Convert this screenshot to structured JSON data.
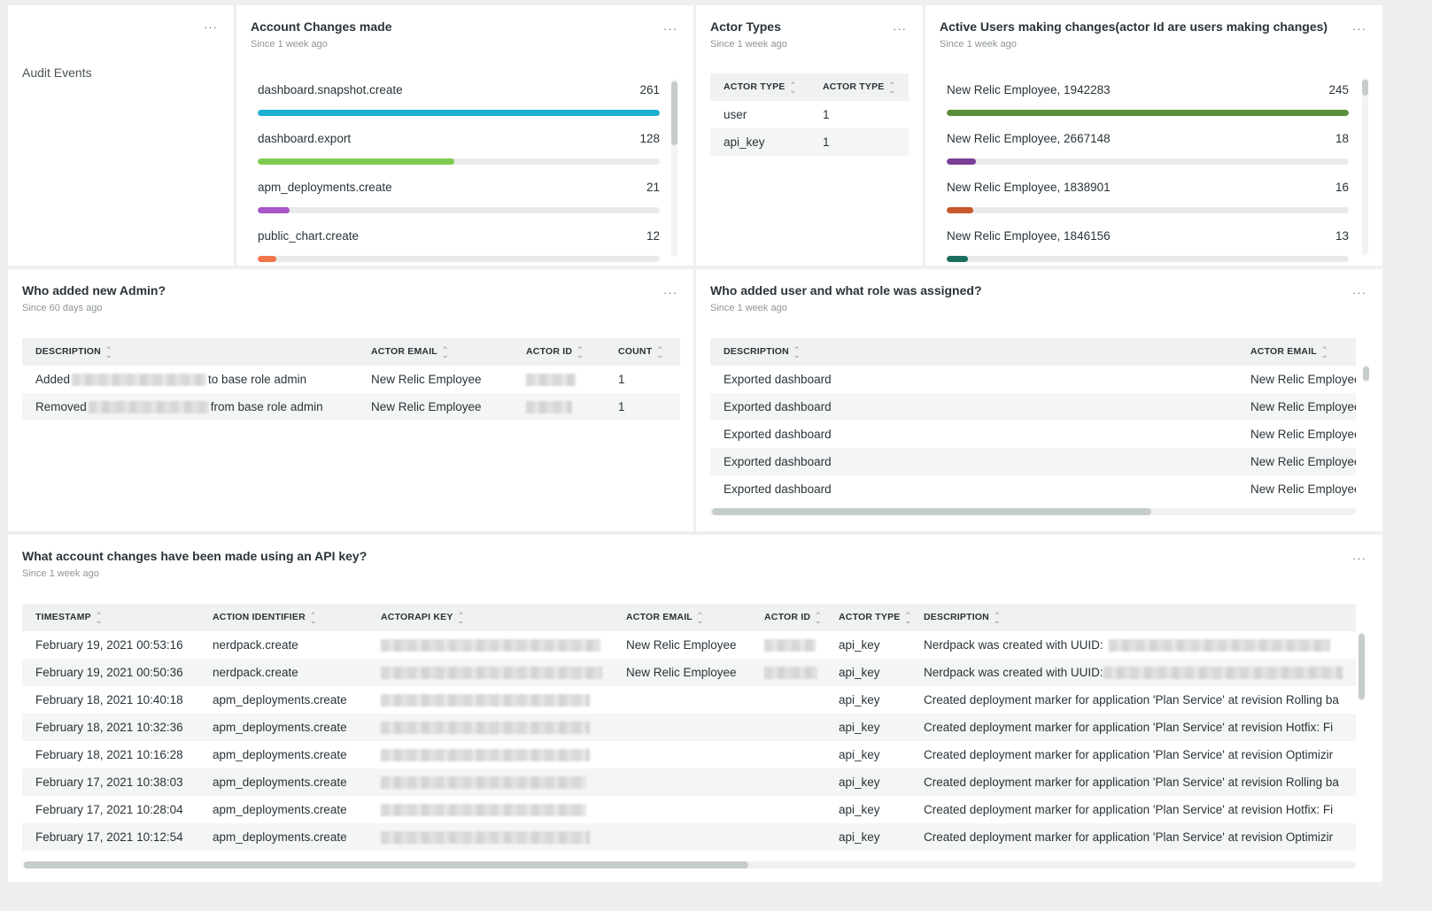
{
  "billboard": {
    "title": "Audit Events",
    "menu": "···"
  },
  "account_changes": {
    "title": "Account Changes made",
    "subtitle": "Since 1 week ago",
    "menu": "···",
    "items": [
      {
        "label": "dashboard.snapshot.create",
        "value": "261",
        "fraction": 1.0,
        "color": "#1aaecf"
      },
      {
        "label": "dashboard.export",
        "value": "128",
        "fraction": 0.49,
        "color": "#7fcb50"
      },
      {
        "label": "apm_deployments.create",
        "value": "21",
        "fraction": 0.08,
        "color": "#a855c7"
      },
      {
        "label": "public_chart.create",
        "value": "12",
        "fraction": 0.046,
        "color": "#f2744a"
      }
    ]
  },
  "actor_types": {
    "title": "Actor Types",
    "subtitle": "Since 1 week ago",
    "menu": "···",
    "headers": [
      "ACTOR TYPE",
      "ACTOR TYPE"
    ],
    "rows": [
      [
        "user",
        "1"
      ],
      [
        "api_key",
        "1"
      ]
    ]
  },
  "active_users": {
    "title": "Active Users making changes(actor Id are users making changes)",
    "subtitle": "Since 1 week ago",
    "menu": "···",
    "items": [
      {
        "label": "New Relic Employee, 1942283",
        "value": "245",
        "fraction": 1.0,
        "color": "#5a8f3a"
      },
      {
        "label": "New Relic Employee, 2667148",
        "value": "18",
        "fraction": 0.073,
        "color": "#7b3f96"
      },
      {
        "label": "New Relic Employee, 1838901",
        "value": "16",
        "fraction": 0.065,
        "color": "#c8572b"
      },
      {
        "label": "New Relic Employee, 1846156",
        "value": "13",
        "fraction": 0.053,
        "color": "#1b6e5e"
      }
    ]
  },
  "new_admin": {
    "title": "Who added new Admin?",
    "subtitle": "Since 60 days ago",
    "menu": "···",
    "headers": [
      "DESCRIPTION",
      "ACTOR EMAIL",
      "ACTOR ID",
      "COUNT"
    ],
    "rows": [
      {
        "pre": "Added",
        "post": "to base role admin",
        "email": "New Relic Employee",
        "count": "1"
      },
      {
        "pre": "Removed",
        "post": "from base role admin",
        "email": "New Relic Employee",
        "count": "1"
      }
    ]
  },
  "user_roles": {
    "title": "Who added user and what role was assigned?",
    "subtitle": "Since 1 week ago",
    "menu": "···",
    "headers": [
      "DESCRIPTION",
      "ACTOR EMAIL"
    ],
    "rows": [
      [
        "Exported dashboard",
        "New Relic Employee"
      ],
      [
        "Exported dashboard",
        "New Relic Employee"
      ],
      [
        "Exported dashboard",
        "New Relic Employee"
      ],
      [
        "Exported dashboard",
        "New Relic Employee"
      ],
      [
        "Exported dashboard",
        "New Relic Employee"
      ]
    ]
  },
  "api_changes": {
    "title": "What account changes have been made using an API key?",
    "subtitle": "Since 1 week ago",
    "menu": "···",
    "headers": [
      "TIMESTAMP",
      "ACTION IDENTIFIER",
      "ACTORAPI KEY",
      "ACTOR EMAIL",
      "ACTOR ID",
      "ACTOR TYPE",
      "DESCRIPTION"
    ],
    "rows": [
      {
        "ts": "February 19, 2021 00:53:16",
        "action": "nerdpack.create",
        "email": "New Relic Employee",
        "type": "api_key",
        "desc": "Nerdpack was created with UUID:"
      },
      {
        "ts": "February 19, 2021 00:50:36",
        "action": "nerdpack.create",
        "email": "New Relic Employee",
        "type": "api_key",
        "desc": "Nerdpack was created with UUID:"
      },
      {
        "ts": "February 18, 2021 10:40:18",
        "action": "apm_deployments.create",
        "email": "",
        "type": "api_key",
        "desc": "Created deployment marker for application 'Plan Service' at revision Rolling ba"
      },
      {
        "ts": "February 18, 2021 10:32:36",
        "action": "apm_deployments.create",
        "email": "",
        "type": "api_key",
        "desc": "Created deployment marker for application 'Plan Service' at revision Hotfix: Fi"
      },
      {
        "ts": "February 18, 2021 10:16:28",
        "action": "apm_deployments.create",
        "email": "",
        "type": "api_key",
        "desc": "Created deployment marker for application 'Plan Service' at revision Optimizir"
      },
      {
        "ts": "February 17, 2021 10:38:03",
        "action": "apm_deployments.create",
        "email": "",
        "type": "api_key",
        "desc": "Created deployment marker for application 'Plan Service' at revision Rolling ba"
      },
      {
        "ts": "February 17, 2021 10:28:04",
        "action": "apm_deployments.create",
        "email": "",
        "type": "api_key",
        "desc": "Created deployment marker for application 'Plan Service' at revision Hotfix: Fi"
      },
      {
        "ts": "February 17, 2021 10:12:54",
        "action": "apm_deployments.create",
        "email": "",
        "type": "api_key",
        "desc": "Created deployment marker for application 'Plan Service' at revision Optimizir"
      }
    ]
  }
}
